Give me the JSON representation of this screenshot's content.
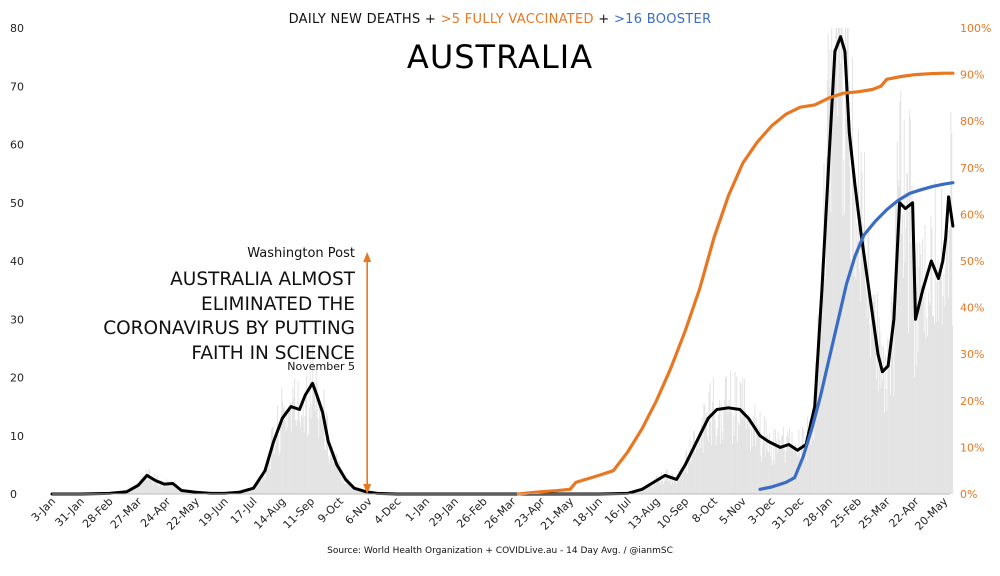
{
  "header": {
    "line_parts": [
      {
        "text": "DAILY NEW DEATHS + ",
        "color": "#111111"
      },
      {
        "text": ">5 FULLY VACCINATED",
        "color": "#e87722"
      },
      {
        "text": " + ",
        "color": "#111111"
      },
      {
        "text": ">16 BOOSTER",
        "color": "#3b6cc4"
      }
    ],
    "title": "AUSTRALIA"
  },
  "annotation": {
    "source": "Washington Post",
    "headline": "AUSTRALIA ALMOST\nELIMINATED THE\nCORONAVIRUS BY PUTTING\nFAITH IN SCIENCE",
    "date": "November 5",
    "arrow_color": "#e87722"
  },
  "footer": {
    "source": "Source: World Health Organization + COVIDLive.au - 14 Day Avg. / @ianmSC"
  },
  "chart_data": {
    "type": "line",
    "title": "AUSTRALIA",
    "x_tick_labels": [
      "3-Jan",
      "31-Jan",
      "28-Feb",
      "27-Mar",
      "24-Apr",
      "22-May",
      "19-Jun",
      "17-Jul",
      "14-Aug",
      "11-Sep",
      "9-Oct",
      "6-Nov",
      "4-Dec",
      "1-Jan",
      "29-Jan",
      "26-Feb",
      "26-Mar",
      "23-Apr",
      "21-May",
      "18-Jun",
      "16-Jul",
      "13-Aug",
      "10-Sep",
      "8-Oct",
      "5-Nov",
      "3-Dec",
      "31-Dec",
      "28-Jan",
      "25-Feb",
      "25-Mar",
      "22-Apr",
      "20-May"
    ],
    "x_range": [
      0,
      31.2
    ],
    "y_left": {
      "range": [
        0,
        80
      ],
      "ticks": [
        0,
        10,
        20,
        30,
        40,
        50,
        60,
        70,
        80
      ],
      "unit": "deaths"
    },
    "y_right": {
      "range": [
        0,
        100
      ],
      "ticks": [
        "0%",
        "10%",
        "20%",
        "30%",
        "40%",
        "50%",
        "60%",
        "70%",
        "80%",
        "90%",
        "100%"
      ],
      "unit": "percent"
    },
    "annotation_x": 10.95,
    "series": [
      {
        "name": "DAILY NEW DEATHS",
        "axis": "left",
        "color": "#000000",
        "points": [
          [
            0,
            0
          ],
          [
            1,
            0
          ],
          [
            2,
            0.1
          ],
          [
            2.6,
            0.4
          ],
          [
            3,
            1.5
          ],
          [
            3.3,
            3.2
          ],
          [
            3.6,
            2.3
          ],
          [
            3.9,
            1.7
          ],
          [
            4.2,
            1.8
          ],
          [
            4.5,
            0.6
          ],
          [
            5,
            0.3
          ],
          [
            5.5,
            0.1
          ],
          [
            6,
            0.1
          ],
          [
            6.5,
            0.3
          ],
          [
            7,
            1
          ],
          [
            7.4,
            4
          ],
          [
            7.7,
            9
          ],
          [
            8,
            13
          ],
          [
            8.3,
            15
          ],
          [
            8.6,
            14.5
          ],
          [
            8.8,
            17
          ],
          [
            9.05,
            19
          ],
          [
            9.2,
            17
          ],
          [
            9.4,
            14
          ],
          [
            9.6,
            9
          ],
          [
            9.9,
            5
          ],
          [
            10.2,
            2.5
          ],
          [
            10.5,
            1
          ],
          [
            10.9,
            0.4
          ],
          [
            11.3,
            0.1
          ],
          [
            12,
            0
          ],
          [
            13,
            0
          ],
          [
            14,
            0
          ],
          [
            15,
            0
          ],
          [
            16,
            0
          ],
          [
            17,
            0
          ],
          [
            18,
            0
          ],
          [
            19,
            0
          ],
          [
            20,
            0.1
          ],
          [
            20.5,
            0.8
          ],
          [
            20.9,
            2
          ],
          [
            21.3,
            3.2
          ],
          [
            21.7,
            2.5
          ],
          [
            22,
            5
          ],
          [
            22.4,
            9
          ],
          [
            22.8,
            13
          ],
          [
            23.1,
            14.5
          ],
          [
            23.5,
            14.8
          ],
          [
            23.9,
            14.5
          ],
          [
            24.2,
            13
          ],
          [
            24.6,
            10
          ],
          [
            24.9,
            9
          ],
          [
            25.3,
            8
          ],
          [
            25.6,
            8.5
          ],
          [
            25.9,
            7.5
          ],
          [
            26.2,
            8.5
          ],
          [
            26.5,
            15
          ],
          [
            26.75,
            35
          ],
          [
            27,
            58
          ],
          [
            27.2,
            76
          ],
          [
            27.4,
            78.5
          ],
          [
            27.55,
            76
          ],
          [
            27.7,
            62
          ],
          [
            27.9,
            53
          ],
          [
            28.1,
            45
          ],
          [
            28.3,
            38
          ],
          [
            28.5,
            31
          ],
          [
            28.7,
            24
          ],
          [
            28.85,
            21
          ],
          [
            29.05,
            22
          ],
          [
            29.25,
            30
          ],
          [
            29.45,
            50
          ],
          [
            29.65,
            49
          ],
          [
            29.9,
            50
          ],
          [
            30,
            30
          ],
          [
            30.25,
            35
          ],
          [
            30.55,
            40
          ],
          [
            30.8,
            37
          ],
          [
            30.95,
            40
          ],
          [
            31.05,
            44
          ],
          [
            31.15,
            51
          ],
          [
            31.3,
            46
          ]
        ]
      },
      {
        "name": ">5 FULLY VACCINATED",
        "axis": "right",
        "color": "#e87722",
        "points": [
          [
            16.2,
            0
          ],
          [
            17,
            0.5
          ],
          [
            17.5,
            0.7
          ],
          [
            18,
            1
          ],
          [
            18.2,
            2.5
          ],
          [
            19,
            4
          ],
          [
            19.5,
            5
          ],
          [
            20,
            9
          ],
          [
            20.5,
            14
          ],
          [
            21,
            20
          ],
          [
            21.5,
            27
          ],
          [
            22,
            35
          ],
          [
            22.5,
            44
          ],
          [
            23,
            55
          ],
          [
            23.5,
            64
          ],
          [
            24,
            71
          ],
          [
            24.5,
            75.5
          ],
          [
            25,
            79
          ],
          [
            25.5,
            81.5
          ],
          [
            26,
            83
          ],
          [
            26.5,
            83.5
          ],
          [
            27,
            85
          ],
          [
            27.5,
            86
          ],
          [
            28,
            86.3
          ],
          [
            28.5,
            86.8
          ],
          [
            28.8,
            87.5
          ],
          [
            29,
            89
          ],
          [
            29.5,
            89.6
          ],
          [
            30,
            90
          ],
          [
            30.5,
            90.2
          ],
          [
            31,
            90.3
          ],
          [
            31.3,
            90.3
          ]
        ]
      },
      {
        "name": ">16 BOOSTER",
        "axis": "right",
        "color": "#3b6cc4",
        "points": [
          [
            24.6,
            1
          ],
          [
            25,
            1.5
          ],
          [
            25.5,
            2.5
          ],
          [
            25.8,
            3.5
          ],
          [
            26.1,
            8
          ],
          [
            26.4,
            14
          ],
          [
            26.7,
            21
          ],
          [
            27,
            29
          ],
          [
            27.3,
            37
          ],
          [
            27.6,
            45
          ],
          [
            27.9,
            51
          ],
          [
            28.2,
            55.5
          ],
          [
            28.6,
            58.5
          ],
          [
            29,
            61
          ],
          [
            29.4,
            63
          ],
          [
            29.8,
            64.5
          ],
          [
            30.2,
            65.3
          ],
          [
            30.6,
            66
          ],
          [
            31,
            66.5
          ],
          [
            31.3,
            66.8
          ]
        ]
      }
    ],
    "shaded_bars": {
      "description": "daily deaths, light grey",
      "color": "#e3e3e3"
    },
    "grid": false,
    "legend": "in title"
  }
}
